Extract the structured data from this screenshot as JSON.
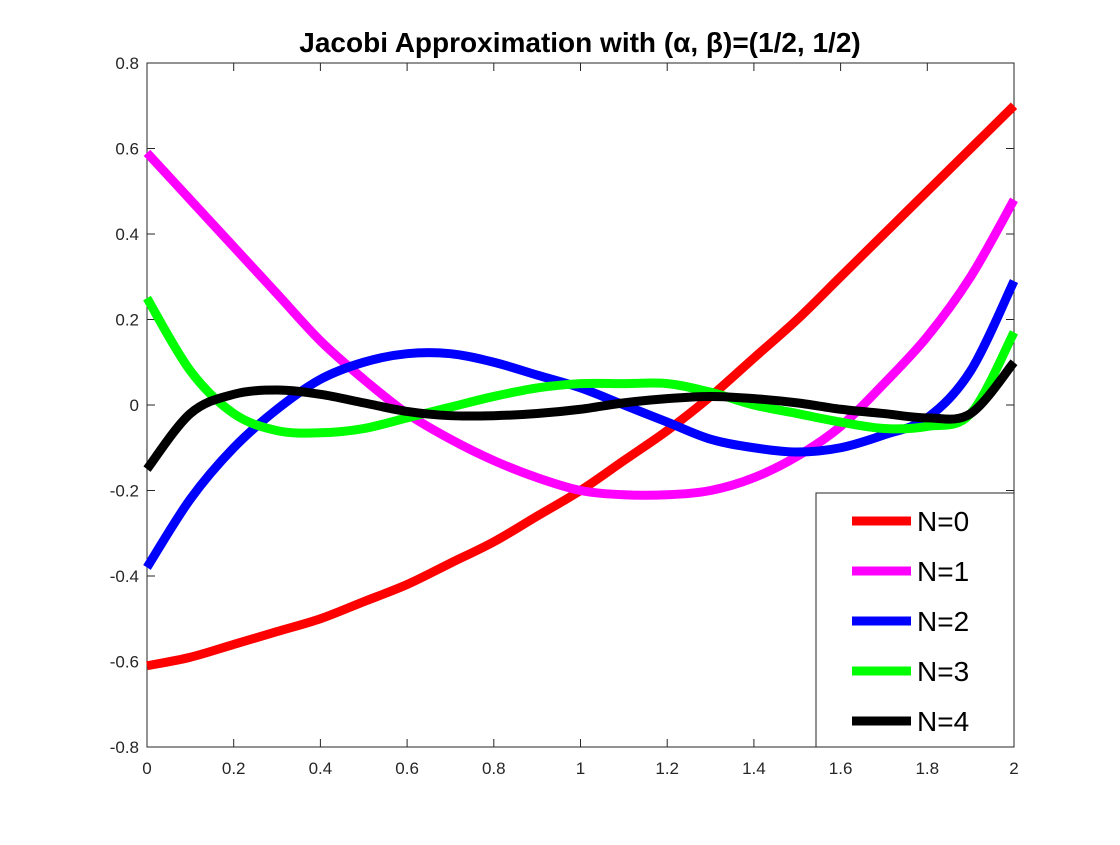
{
  "chart_data": {
    "type": "line",
    "title": "Jacobi Approximation with (α, β)=(1/2, 1/2)",
    "xlabel": "",
    "ylabel": "",
    "xlim": [
      0,
      2
    ],
    "ylim": [
      -0.8,
      0.8
    ],
    "xticks": [
      0,
      0.2,
      0.4,
      0.6,
      0.8,
      1,
      1.2,
      1.4,
      1.6,
      1.8,
      2
    ],
    "xtick_labels": [
      "0",
      "0.2",
      "0.4",
      "0.6",
      "0.8",
      "1",
      "1.2",
      "1.4",
      "1.6",
      "1.8",
      "2"
    ],
    "yticks": [
      -0.8,
      -0.6,
      -0.4,
      -0.2,
      0,
      0.2,
      0.4,
      0.6,
      0.8
    ],
    "ytick_labels": [
      "-0.8",
      "-0.6",
      "-0.4",
      "-0.2",
      "0",
      "0.2",
      "0.4",
      "0.6",
      "0.8"
    ],
    "grid": false,
    "legend_position": "bottom-right",
    "x": [
      0,
      0.1,
      0.2,
      0.3,
      0.4,
      0.5,
      0.6,
      0.7,
      0.8,
      0.9,
      1.0,
      1.1,
      1.2,
      1.3,
      1.4,
      1.5,
      1.6,
      1.7,
      1.8,
      1.9,
      2.0
    ],
    "series": [
      {
        "name": "N=0",
        "color": "#ff0000",
        "values": [
          -0.61,
          -0.59,
          -0.56,
          -0.53,
          -0.5,
          -0.46,
          -0.42,
          -0.37,
          -0.32,
          -0.26,
          -0.2,
          -0.13,
          -0.06,
          0.02,
          0.11,
          0.2,
          0.3,
          0.4,
          0.5,
          0.6,
          0.7
        ]
      },
      {
        "name": "N=1",
        "color": "#ff00ff",
        "values": [
          0.59,
          0.48,
          0.37,
          0.26,
          0.15,
          0.06,
          -0.02,
          -0.08,
          -0.13,
          -0.17,
          -0.2,
          -0.21,
          -0.21,
          -0.2,
          -0.17,
          -0.12,
          -0.05,
          0.05,
          0.16,
          0.3,
          0.48
        ]
      },
      {
        "name": "N=2",
        "color": "#0000ff",
        "values": [
          -0.38,
          -0.22,
          -0.1,
          -0.01,
          0.06,
          0.1,
          0.12,
          0.12,
          0.1,
          0.07,
          0.04,
          0.0,
          -0.04,
          -0.08,
          -0.1,
          -0.11,
          -0.1,
          -0.07,
          -0.03,
          0.08,
          0.29
        ]
      },
      {
        "name": "N=3",
        "color": "#00ff00",
        "values": [
          0.25,
          0.08,
          -0.02,
          -0.06,
          -0.065,
          -0.055,
          -0.03,
          -0.005,
          0.02,
          0.04,
          0.05,
          0.05,
          0.05,
          0.03,
          0.0,
          -0.02,
          -0.04,
          -0.055,
          -0.05,
          -0.02,
          0.17
        ]
      },
      {
        "name": "N=4",
        "color": "#000000",
        "values": [
          -0.15,
          -0.02,
          0.025,
          0.035,
          0.025,
          0.005,
          -0.015,
          -0.025,
          -0.025,
          -0.02,
          -0.01,
          0.005,
          0.015,
          0.02,
          0.015,
          0.005,
          -0.01,
          -0.02,
          -0.03,
          -0.02,
          0.1
        ]
      }
    ]
  }
}
